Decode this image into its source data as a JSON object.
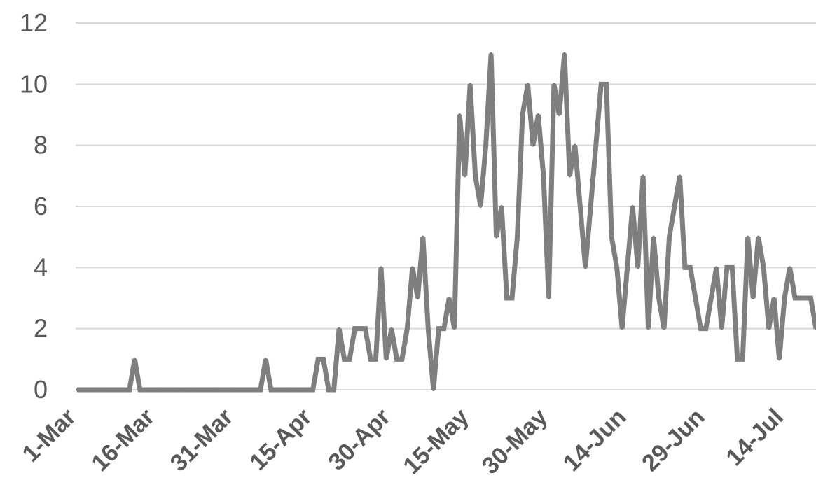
{
  "chart_data": {
    "type": "line",
    "title": "",
    "xlabel": "",
    "ylabel": "",
    "x_start": "1-Mar",
    "x_end": "15-Jul",
    "x_tick_labels": [
      "1-Mar",
      "16-Mar",
      "31-Mar",
      "15-Apr",
      "30-Apr",
      "15-May",
      "30-May",
      "14-Jun",
      "29-Jun",
      "14-Jul"
    ],
    "y_tick_labels": [
      "0",
      "2",
      "4",
      "6",
      "8",
      "10",
      "12"
    ],
    "ylim": [
      0,
      12
    ],
    "grid": true,
    "legend": "none",
    "colors": {
      "series": "#7f7f7f",
      "grid": "#d9d9d9",
      "tick_text": "#595959"
    },
    "series": [
      {
        "values": [
          0,
          0,
          0,
          0,
          0,
          0,
          0,
          0,
          0,
          0,
          0,
          1,
          0,
          0,
          0,
          0,
          0,
          0,
          0,
          0,
          0,
          0,
          0,
          0,
          0,
          0,
          0,
          0,
          0,
          0,
          0,
          0,
          0,
          0,
          0,
          0,
          1,
          0,
          0,
          0,
          0,
          0,
          0,
          0,
          0,
          0,
          1,
          1,
          0,
          0,
          2,
          1,
          1,
          2,
          2,
          2,
          1,
          1,
          4,
          1,
          2,
          1,
          1,
          2,
          4,
          3,
          5,
          2,
          0,
          2,
          2,
          3,
          2,
          9,
          7,
          10,
          7,
          6,
          8,
          11,
          5,
          6,
          3,
          3,
          5,
          9,
          10,
          8,
          9,
          7,
          3,
          10,
          9,
          11,
          7,
          8,
          6,
          4,
          6,
          8,
          10,
          10,
          5,
          4,
          2,
          4,
          6,
          4,
          7,
          2,
          5,
          3,
          2,
          5,
          6,
          7,
          4,
          4,
          3,
          2,
          2,
          3,
          4,
          2,
          4,
          4,
          1,
          1,
          5,
          3,
          5,
          4,
          2,
          3,
          1,
          3,
          4,
          3,
          3,
          3,
          3,
          2
        ]
      }
    ]
  }
}
